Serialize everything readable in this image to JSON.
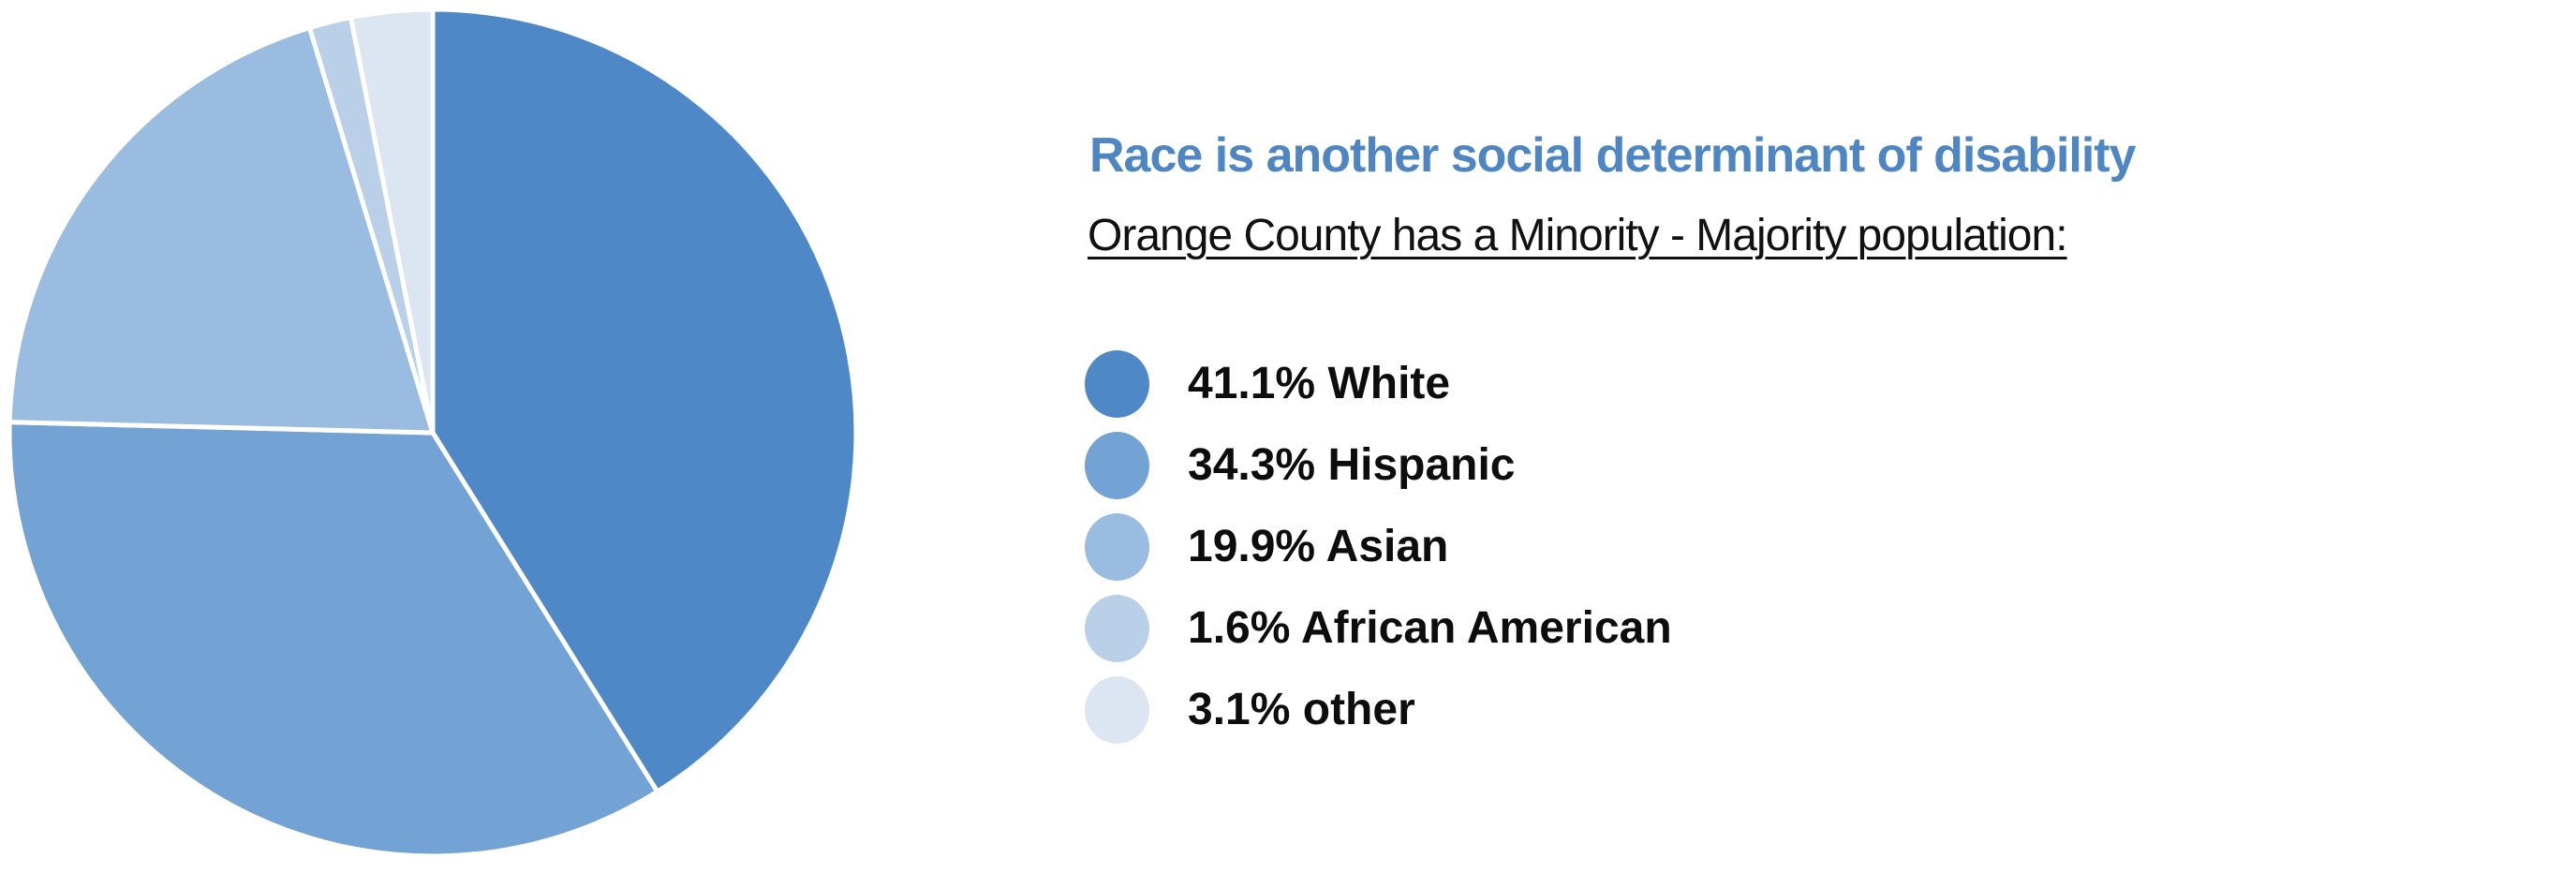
{
  "title": {
    "text": "Race is another social determinant of disability",
    "color": "#4e86c4"
  },
  "subtitle": {
    "text": "Orange County has a Minority - Majority population:"
  },
  "legend": [
    {
      "label": "41.1% White",
      "color": "#4f88c6"
    },
    {
      "label": "34.3% Hispanic",
      "color": "#73a2d4"
    },
    {
      "label": "19.9% Asian",
      "color": "#9abce0"
    },
    {
      "label": "1.6% African American",
      "color": "#bacfe8"
    },
    {
      "label": "3.1% other",
      "color": "#dce6f2"
    }
  ],
  "chart_data": {
    "type": "pie",
    "title": "Race is another social determinant of disability",
    "subtitle": "Orange County has a Minority - Majority population:",
    "categories": [
      "White",
      "Hispanic",
      "Asian",
      "African American",
      "other"
    ],
    "values": [
      41.1,
      34.3,
      19.9,
      1.6,
      3.1
    ],
    "colors": [
      "#4f88c6",
      "#73a2d4",
      "#9abce0",
      "#bacfe8",
      "#dce6f2"
    ],
    "units": "percent",
    "start_angle_deg": 0,
    "direction": "clockwise",
    "slice_separator_color": "#ffffff",
    "slice_separator_width": 5,
    "legend_position": "right",
    "data_labels_on_slices": false
  }
}
